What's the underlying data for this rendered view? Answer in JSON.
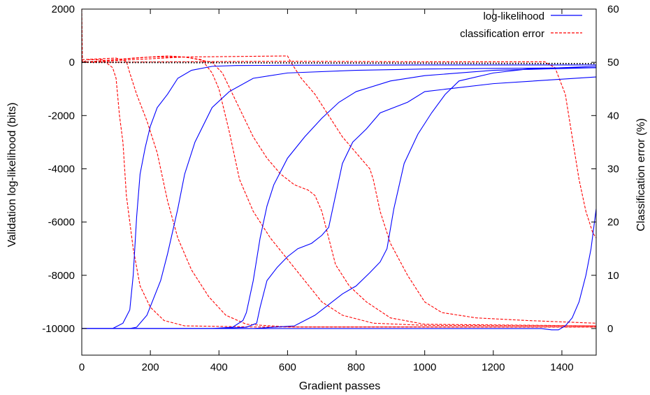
{
  "chart_data": {
    "type": "line",
    "xlabel": "Gradient passes",
    "ylabel_left": "Validation log-likelihood (bits)",
    "ylabel_right": "Classification error (%)",
    "xlim": [
      0,
      1500
    ],
    "ylim_left": [
      -11000,
      2000
    ],
    "ylim_right": [
      -5,
      60
    ],
    "xticks": [
      0,
      200,
      400,
      600,
      800,
      1000,
      1200,
      1400
    ],
    "yticks_left": [
      2000,
      0,
      -2000,
      -4000,
      -6000,
      -8000,
      -10000
    ],
    "yticks_right": [
      60,
      50,
      40,
      30,
      20,
      10,
      0
    ],
    "grid": false,
    "legend_position": "top-right",
    "colors": {
      "loglik": "#0000ff",
      "error": "#ff0000",
      "reference": "#000000"
    },
    "series": [
      {
        "name": "log-likelihood",
        "axis": "left",
        "style": "solid",
        "runs": [
          [
            [
              0,
              -10000
            ],
            [
              90,
              -10000
            ],
            [
              120,
              -9800
            ],
            [
              140,
              -9300
            ],
            [
              150,
              -8000
            ],
            [
              160,
              -5800
            ],
            [
              170,
              -4200
            ],
            [
              185,
              -3200
            ],
            [
              200,
              -2400
            ],
            [
              220,
              -1700
            ],
            [
              250,
              -1200
            ],
            [
              280,
              -600
            ],
            [
              320,
              -300
            ],
            [
              380,
              -150
            ],
            [
              450,
              -120
            ],
            [
              600,
              -110
            ],
            [
              1000,
              -100
            ],
            [
              1500,
              -100
            ]
          ],
          [
            [
              0,
              -10000
            ],
            [
              140,
              -10000
            ],
            [
              160,
              -9950
            ],
            [
              190,
              -9500
            ],
            [
              230,
              -8200
            ],
            [
              250,
              -7200
            ],
            [
              280,
              -5500
            ],
            [
              300,
              -4200
            ],
            [
              330,
              -3000
            ],
            [
              380,
              -1700
            ],
            [
              430,
              -1100
            ],
            [
              500,
              -600
            ],
            [
              600,
              -400
            ],
            [
              800,
              -300
            ],
            [
              1000,
              -250
            ],
            [
              1500,
              -200
            ]
          ],
          [
            [
              0,
              -10000
            ],
            [
              380,
              -10000
            ],
            [
              440,
              -9950
            ],
            [
              470,
              -9700
            ],
            [
              480,
              -9400
            ],
            [
              500,
              -8200
            ],
            [
              520,
              -6600
            ],
            [
              540,
              -5400
            ],
            [
              560,
              -4600
            ],
            [
              600,
              -3600
            ],
            [
              650,
              -2800
            ],
            [
              700,
              -2100
            ],
            [
              750,
              -1500
            ],
            [
              800,
              -1100
            ],
            [
              900,
              -700
            ],
            [
              1000,
              -500
            ],
            [
              1200,
              -300
            ],
            [
              1500,
              -200
            ]
          ],
          [
            [
              0,
              -10000
            ],
            [
              400,
              -10000
            ],
            [
              480,
              -9950
            ],
            [
              510,
              -9800
            ],
            [
              520,
              -9200
            ],
            [
              540,
              -8200
            ],
            [
              570,
              -7700
            ],
            [
              600,
              -7300
            ],
            [
              630,
              -7000
            ],
            [
              670,
              -6800
            ],
            [
              700,
              -6500
            ],
            [
              720,
              -6200
            ],
            [
              740,
              -5000
            ],
            [
              760,
              -3800
            ],
            [
              790,
              -3000
            ],
            [
              830,
              -2500
            ],
            [
              870,
              -1900
            ],
            [
              950,
              -1500
            ],
            [
              1000,
              -1100
            ],
            [
              1200,
              -800
            ],
            [
              1500,
              -550
            ]
          ],
          [
            [
              0,
              -10000
            ],
            [
              500,
              -10000
            ],
            [
              620,
              -9900
            ],
            [
              680,
              -9500
            ],
            [
              720,
              -9100
            ],
            [
              760,
              -8700
            ],
            [
              800,
              -8400
            ],
            [
              840,
              -7900
            ],
            [
              870,
              -7500
            ],
            [
              890,
              -7000
            ],
            [
              910,
              -5500
            ],
            [
              940,
              -3800
            ],
            [
              980,
              -2700
            ],
            [
              1020,
              -1900
            ],
            [
              1060,
              -1200
            ],
            [
              1100,
              -700
            ],
            [
              1200,
              -400
            ],
            [
              1300,
              -250
            ],
            [
              1500,
              -150
            ]
          ],
          [
            [
              0,
              -10000
            ],
            [
              1340,
              -10000
            ],
            [
              1370,
              -10050
            ],
            [
              1390,
              -10050
            ],
            [
              1410,
              -9900
            ],
            [
              1430,
              -9600
            ],
            [
              1450,
              -9000
            ],
            [
              1470,
              -8000
            ],
            [
              1485,
              -7000
            ],
            [
              1500,
              -5500
            ]
          ]
        ]
      },
      {
        "name": "classification error",
        "axis": "right",
        "style": "dashed",
        "runs": [
          [
            [
              0,
              60
            ],
            [
              2,
              50
            ],
            [
              20,
              50.5
            ],
            [
              60,
              50.5
            ],
            [
              90,
              49
            ],
            [
              100,
              47
            ],
            [
              110,
              40
            ],
            [
              120,
              35
            ],
            [
              130,
              25
            ],
            [
              150,
              15
            ],
            [
              170,
              8
            ],
            [
              200,
              4
            ],
            [
              240,
              1.5
            ],
            [
              300,
              0.5
            ],
            [
              500,
              0.3
            ],
            [
              1000,
              0.3
            ],
            [
              1500,
              0.3
            ]
          ],
          [
            [
              0,
              50.5
            ],
            [
              100,
              50.8
            ],
            [
              130,
              50.2
            ],
            [
              140,
              48
            ],
            [
              160,
              44
            ],
            [
              190,
              39
            ],
            [
              220,
              33
            ],
            [
              250,
              24
            ],
            [
              280,
              17
            ],
            [
              320,
              11
            ],
            [
              370,
              6
            ],
            [
              420,
              2.5
            ],
            [
              480,
              0.8
            ],
            [
              600,
              0.3
            ],
            [
              1500,
              0.3
            ]
          ],
          [
            [
              0,
              50
            ],
            [
              150,
              50.8
            ],
            [
              250,
              51.2
            ],
            [
              300,
              51
            ],
            [
              350,
              50.5
            ],
            [
              380,
              48
            ],
            [
              400,
              45
            ],
            [
              430,
              37
            ],
            [
              460,
              28
            ],
            [
              500,
              22
            ],
            [
              550,
              17
            ],
            [
              600,
              13
            ],
            [
              650,
              9
            ],
            [
              700,
              5
            ],
            [
              760,
              2.5
            ],
            [
              850,
              1
            ],
            [
              1000,
              0.6
            ],
            [
              1500,
              0.5
            ]
          ],
          [
            [
              0,
              50
            ],
            [
              200,
              51
            ],
            [
              300,
              51
            ],
            [
              350,
              50.4
            ],
            [
              380,
              50
            ],
            [
              410,
              48
            ],
            [
              440,
              44
            ],
            [
              470,
              40
            ],
            [
              500,
              36
            ],
            [
              540,
              32
            ],
            [
              580,
              29
            ],
            [
              620,
              27
            ],
            [
              660,
              26
            ],
            [
              680,
              25
            ],
            [
              700,
              22
            ],
            [
              740,
              12
            ],
            [
              780,
              8
            ],
            [
              830,
              5
            ],
            [
              900,
              2
            ],
            [
              1000,
              0.8
            ],
            [
              1500,
              0.5
            ]
          ],
          [
            [
              0,
              50
            ],
            [
              300,
              51
            ],
            [
              600,
              51.2
            ],
            [
              610,
              50
            ],
            [
              640,
              47
            ],
            [
              680,
              44
            ],
            [
              720,
              40
            ],
            [
              760,
              36
            ],
            [
              800,
              33
            ],
            [
              840,
              30
            ],
            [
              850,
              28
            ],
            [
              870,
              22
            ],
            [
              900,
              16
            ],
            [
              950,
              10
            ],
            [
              1000,
              5
            ],
            [
              1050,
              3
            ],
            [
              1150,
              2
            ],
            [
              1300,
              1.5
            ],
            [
              1500,
              1
            ]
          ],
          [
            [
              0,
              50
            ],
            [
              600,
              50.2
            ],
            [
              1000,
              50.1
            ],
            [
              1350,
              50.1
            ],
            [
              1380,
              49
            ],
            [
              1410,
              44
            ],
            [
              1430,
              36
            ],
            [
              1450,
              28
            ],
            [
              1470,
              22
            ],
            [
              1490,
              18
            ],
            [
              1500,
              17
            ]
          ]
        ]
      }
    ],
    "reference_line": {
      "axis": "left",
      "style": "dotted",
      "points": [
        [
          0,
          0
        ],
        [
          1500,
          -50
        ]
      ]
    }
  }
}
